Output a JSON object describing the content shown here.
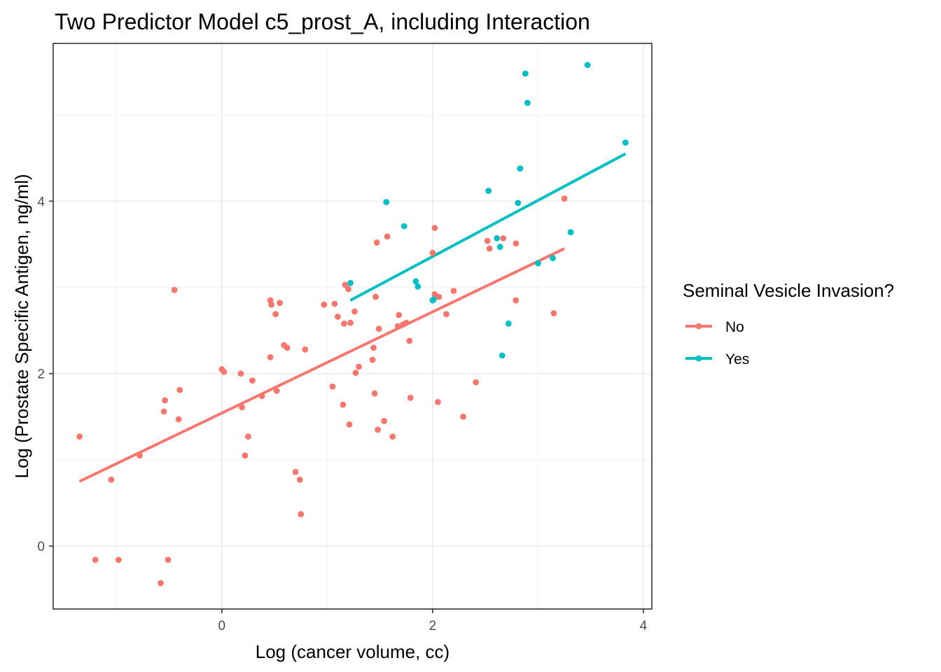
{
  "chart_data": {
    "type": "scatter",
    "title": "Two Predictor Model c5_prost_A, including Interaction",
    "xlabel": "Log (cancer volume, cc)",
    "ylabel": "Log (Prostate Specific Antigen, ng/ml)",
    "xlim": [
      -1.6,
      4.08
    ],
    "ylim": [
      -0.73,
      5.83
    ],
    "x_ticks": [
      0,
      2,
      4
    ],
    "y_ticks": [
      0,
      2,
      4
    ],
    "grid": true,
    "legend": {
      "title": "Seminal Vesicle Invasion?",
      "position": "right"
    },
    "series": [
      {
        "name": "No",
        "color": "#F8766D",
        "fit_line": {
          "x": [
            -1.35,
            3.25
          ],
          "y": [
            0.75,
            3.45
          ]
        },
        "points": [
          [
            -1.35,
            1.27
          ],
          [
            -1.2,
            -0.16
          ],
          [
            -1.05,
            0.77
          ],
          [
            -0.98,
            -0.16
          ],
          [
            -0.78,
            1.05
          ],
          [
            -0.58,
            -0.43
          ],
          [
            -0.55,
            1.56
          ],
          [
            -0.54,
            1.69
          ],
          [
            -0.51,
            -0.16
          ],
          [
            -0.45,
            2.97
          ],
          [
            -0.41,
            1.47
          ],
          [
            -0.4,
            1.81
          ],
          [
            0.0,
            2.05
          ],
          [
            0.02,
            2.02
          ],
          [
            0.18,
            2.0
          ],
          [
            0.19,
            1.61
          ],
          [
            0.22,
            1.05
          ],
          [
            0.25,
            1.27
          ],
          [
            0.29,
            1.92
          ],
          [
            0.38,
            1.74
          ],
          [
            0.46,
            2.19
          ],
          [
            0.46,
            2.85
          ],
          [
            0.47,
            2.8
          ],
          [
            0.51,
            2.69
          ],
          [
            0.52,
            1.8
          ],
          [
            0.55,
            2.82
          ],
          [
            0.59,
            2.33
          ],
          [
            0.62,
            2.3
          ],
          [
            0.7,
            0.86
          ],
          [
            0.74,
            0.77
          ],
          [
            0.75,
            0.37
          ],
          [
            0.79,
            2.28
          ],
          [
            0.97,
            2.8
          ],
          [
            1.05,
            1.85
          ],
          [
            1.07,
            2.81
          ],
          [
            1.1,
            2.66
          ],
          [
            1.15,
            1.64
          ],
          [
            1.16,
            2.58
          ],
          [
            1.17,
            3.03
          ],
          [
            1.2,
            2.98
          ],
          [
            1.21,
            1.41
          ],
          [
            1.22,
            2.59
          ],
          [
            1.26,
            2.72
          ],
          [
            1.27,
            2.01
          ],
          [
            1.3,
            2.08
          ],
          [
            1.43,
            2.16
          ],
          [
            1.44,
            2.3
          ],
          [
            1.45,
            1.77
          ],
          [
            1.46,
            2.89
          ],
          [
            1.47,
            3.52
          ],
          [
            1.48,
            1.35
          ],
          [
            1.49,
            2.52
          ],
          [
            1.54,
            1.45
          ],
          [
            1.57,
            3.59
          ],
          [
            1.62,
            1.27
          ],
          [
            1.67,
            2.55
          ],
          [
            1.68,
            2.68
          ],
          [
            1.72,
            2.57
          ],
          [
            1.75,
            2.59
          ],
          [
            1.78,
            2.38
          ],
          [
            1.79,
            1.72
          ],
          [
            2.0,
            3.4
          ],
          [
            2.02,
            2.92
          ],
          [
            2.02,
            3.69
          ],
          [
            2.05,
            1.67
          ],
          [
            2.06,
            2.89
          ],
          [
            2.13,
            2.69
          ],
          [
            2.2,
            2.96
          ],
          [
            2.29,
            1.5
          ],
          [
            2.41,
            1.9
          ],
          [
            2.52,
            3.54
          ],
          [
            2.54,
            3.45
          ],
          [
            2.67,
            3.57
          ],
          [
            2.79,
            2.85
          ],
          [
            2.79,
            3.51
          ],
          [
            3.15,
            2.7
          ],
          [
            3.25,
            4.03
          ]
        ]
      },
      {
        "name": "Yes",
        "color": "#00BFC4",
        "fit_line": {
          "x": [
            1.22,
            3.83
          ],
          "y": [
            2.85,
            4.55
          ]
        },
        "points": [
          [
            1.22,
            3.05
          ],
          [
            1.56,
            3.99
          ],
          [
            1.73,
            3.71
          ],
          [
            1.84,
            3.07
          ],
          [
            1.86,
            3.01
          ],
          [
            2.0,
            2.85
          ],
          [
            2.01,
            2.86
          ],
          [
            2.53,
            4.12
          ],
          [
            2.61,
            3.57
          ],
          [
            2.64,
            3.47
          ],
          [
            2.66,
            2.21
          ],
          [
            2.72,
            2.58
          ],
          [
            2.81,
            3.98
          ],
          [
            2.83,
            4.38
          ],
          [
            2.88,
            5.48
          ],
          [
            2.9,
            5.14
          ],
          [
            3.0,
            3.28
          ],
          [
            3.14,
            3.34
          ],
          [
            3.31,
            3.64
          ],
          [
            3.47,
            5.58
          ],
          [
            3.83,
            4.68
          ]
        ]
      }
    ]
  }
}
